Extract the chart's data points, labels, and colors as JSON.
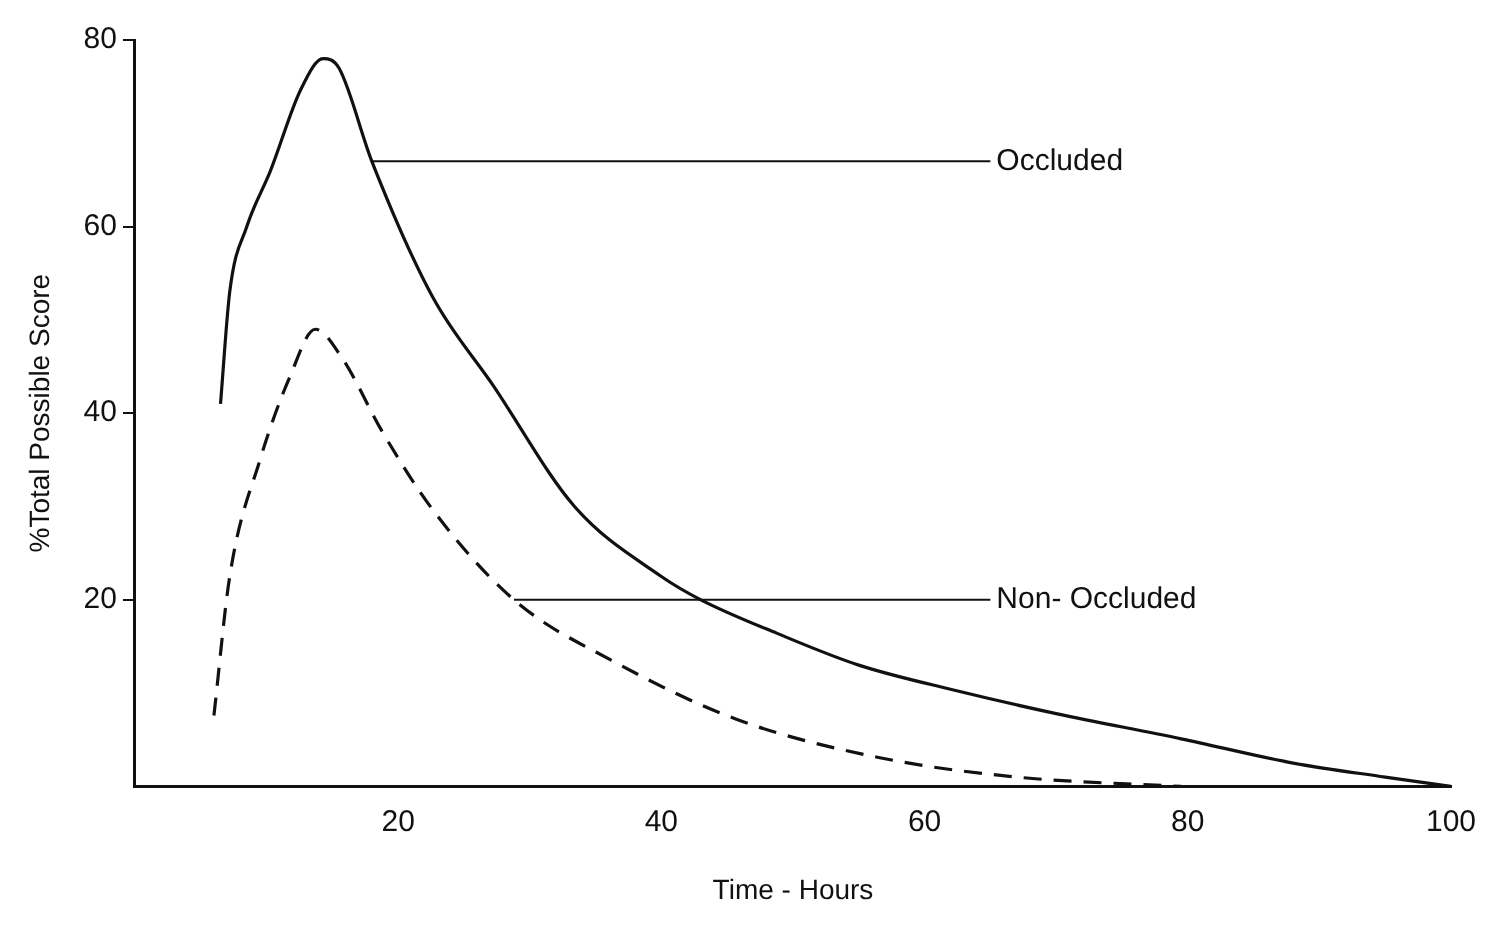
{
  "chart_data": {
    "type": "line",
    "xlabel": "Time - Hours",
    "ylabel": "%Total Possible Score",
    "xlim": [
      0,
      100
    ],
    "ylim": [
      0,
      80
    ],
    "xticks": [
      20,
      40,
      60,
      80,
      100
    ],
    "yticks": [
      20,
      40,
      60,
      80
    ],
    "grid": false,
    "legend": false,
    "marker": "none",
    "series": [
      {
        "color": "#111111",
        "line_style": "solid",
        "x": [
          6.5,
          7.2,
          8.5,
          10.3,
          12.6,
          14.3,
          15.5,
          18,
          22.6,
          27.2,
          33.4,
          40,
          43,
          48.8,
          55,
          62.6,
          70,
          79.5,
          88,
          95,
          100
        ],
        "values": [
          41,
          53,
          60,
          66,
          74.7,
          78,
          77,
          67,
          52.5,
          43,
          30,
          22.5,
          20,
          16.4,
          13,
          10.2,
          7.8,
          5.1,
          2.5,
          1,
          0
        ]
      },
      {
        "color": "#111111",
        "line_style": "dashed",
        "x": [
          6,
          7.2,
          9.5,
          11.8,
          13.7,
          15.7,
          18.8,
          22.6,
          28.8,
          36.5,
          45.7,
          56.5,
          67,
          79.5
        ],
        "values": [
          7.6,
          22.5,
          35,
          44,
          49,
          46,
          38,
          29.7,
          20,
          13.3,
          7.2,
          3.1,
          1,
          0
        ]
      }
    ],
    "annotations": [
      {
        "text": "Occluded",
        "x": 18,
        "y": 67
      },
      {
        "text": "Non- Occluded",
        "x": 28.8,
        "y": 20
      }
    ]
  }
}
